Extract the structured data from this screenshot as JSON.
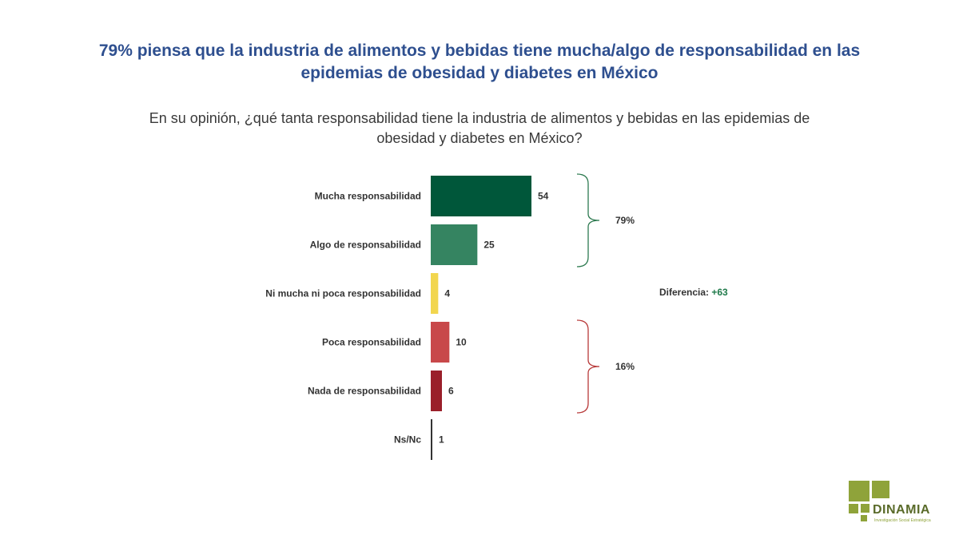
{
  "headline": "79% piensa que la industria de alimentos y bebidas tiene mucha/algo de responsabilidad en las epidemias de obesidad y diabetes en México",
  "question": "En su opinión, ¿qué tanta responsabilidad tiene la industria de alimentos y bebidas en las epidemias de obesidad y diabetes en México?",
  "chart_data": {
    "type": "bar",
    "orientation": "horizontal",
    "categories": [
      "Mucha responsabilidad",
      "Algo de responsabilidad",
      "Ni mucha ni poca responsabilidad",
      "Poca responsabilidad",
      "Nada de responsabilidad",
      "Ns/Nc"
    ],
    "values": [
      54,
      25,
      4,
      10,
      6,
      1
    ],
    "colors": [
      "#00573a",
      "#358461",
      "#f2d64e",
      "#c8484a",
      "#9a1f2a",
      "#333333"
    ],
    "groups": [
      {
        "label": "79%",
        "from": 0,
        "to": 1
      },
      {
        "label": "16%",
        "from": 3,
        "to": 4
      }
    ],
    "group_colors": [
      "#2d7a50",
      "#b83a3a"
    ],
    "difference": {
      "label": "Diferencia:",
      "value": "+63"
    },
    "grid": false,
    "legend": "none"
  },
  "logo": {
    "name": "DINAMIA",
    "tagline": "Investigación Social Estratégica",
    "color": "#8fa33a"
  }
}
